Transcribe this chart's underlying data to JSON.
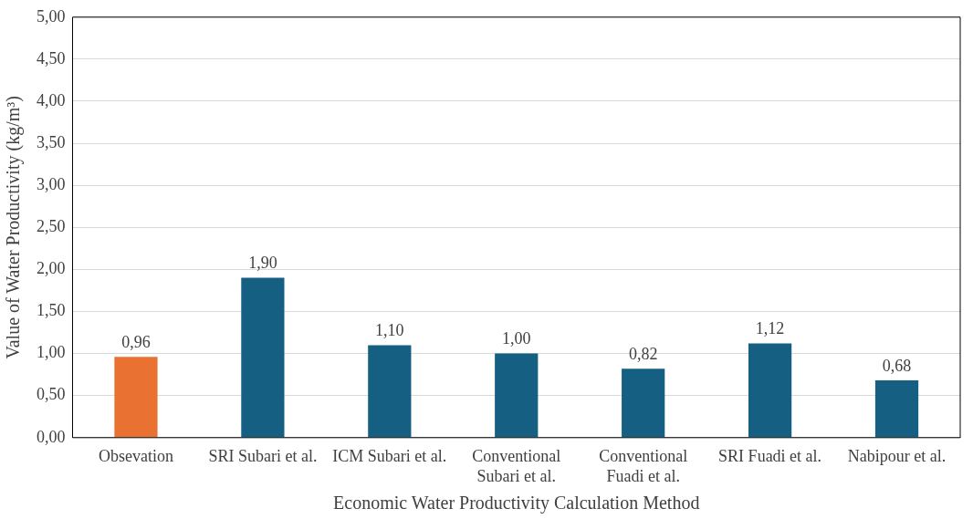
{
  "chart_data": {
    "type": "bar",
    "xlabel": "Economic Water Productivity Calculation Method",
    "ylabel": "Value of Water Productivity (kg/m³)",
    "categories": [
      "Obsevation",
      "SRI Subari et al.",
      "ICM Subari et al.",
      "Conventional Subari et al.",
      "Conventional Fuadi et al.",
      "SRI Fuadi et al.",
      "Nabipour et al."
    ],
    "values": [
      0.96,
      1.9,
      1.1,
      1.0,
      0.82,
      1.12,
      0.68
    ],
    "colors": [
      "#e97132",
      "#156082",
      "#156082",
      "#156082",
      "#156082",
      "#156082",
      "#156082"
    ],
    "value_labels": [
      "0,96",
      "1,90",
      "1,10",
      "1,00",
      "0,82",
      "1,12",
      "0,68"
    ],
    "ylim": [
      0,
      5
    ],
    "yticks": [
      {
        "value": 0,
        "label": "0,00"
      },
      {
        "value": 0.5,
        "label": "0,50"
      },
      {
        "value": 1,
        "label": "1,00"
      },
      {
        "value": 1.5,
        "label": "1,50"
      },
      {
        "value": 2,
        "label": "2,00"
      },
      {
        "value": 2.5,
        "label": "2,50"
      },
      {
        "value": 3,
        "label": "3,00"
      },
      {
        "value": 3.5,
        "label": "3,50"
      },
      {
        "value": 4,
        "label": "4,00"
      },
      {
        "value": 4.5,
        "label": "4,50"
      },
      {
        "value": 5,
        "label": "5,00"
      }
    ],
    "grid": "y",
    "legend": false
  }
}
